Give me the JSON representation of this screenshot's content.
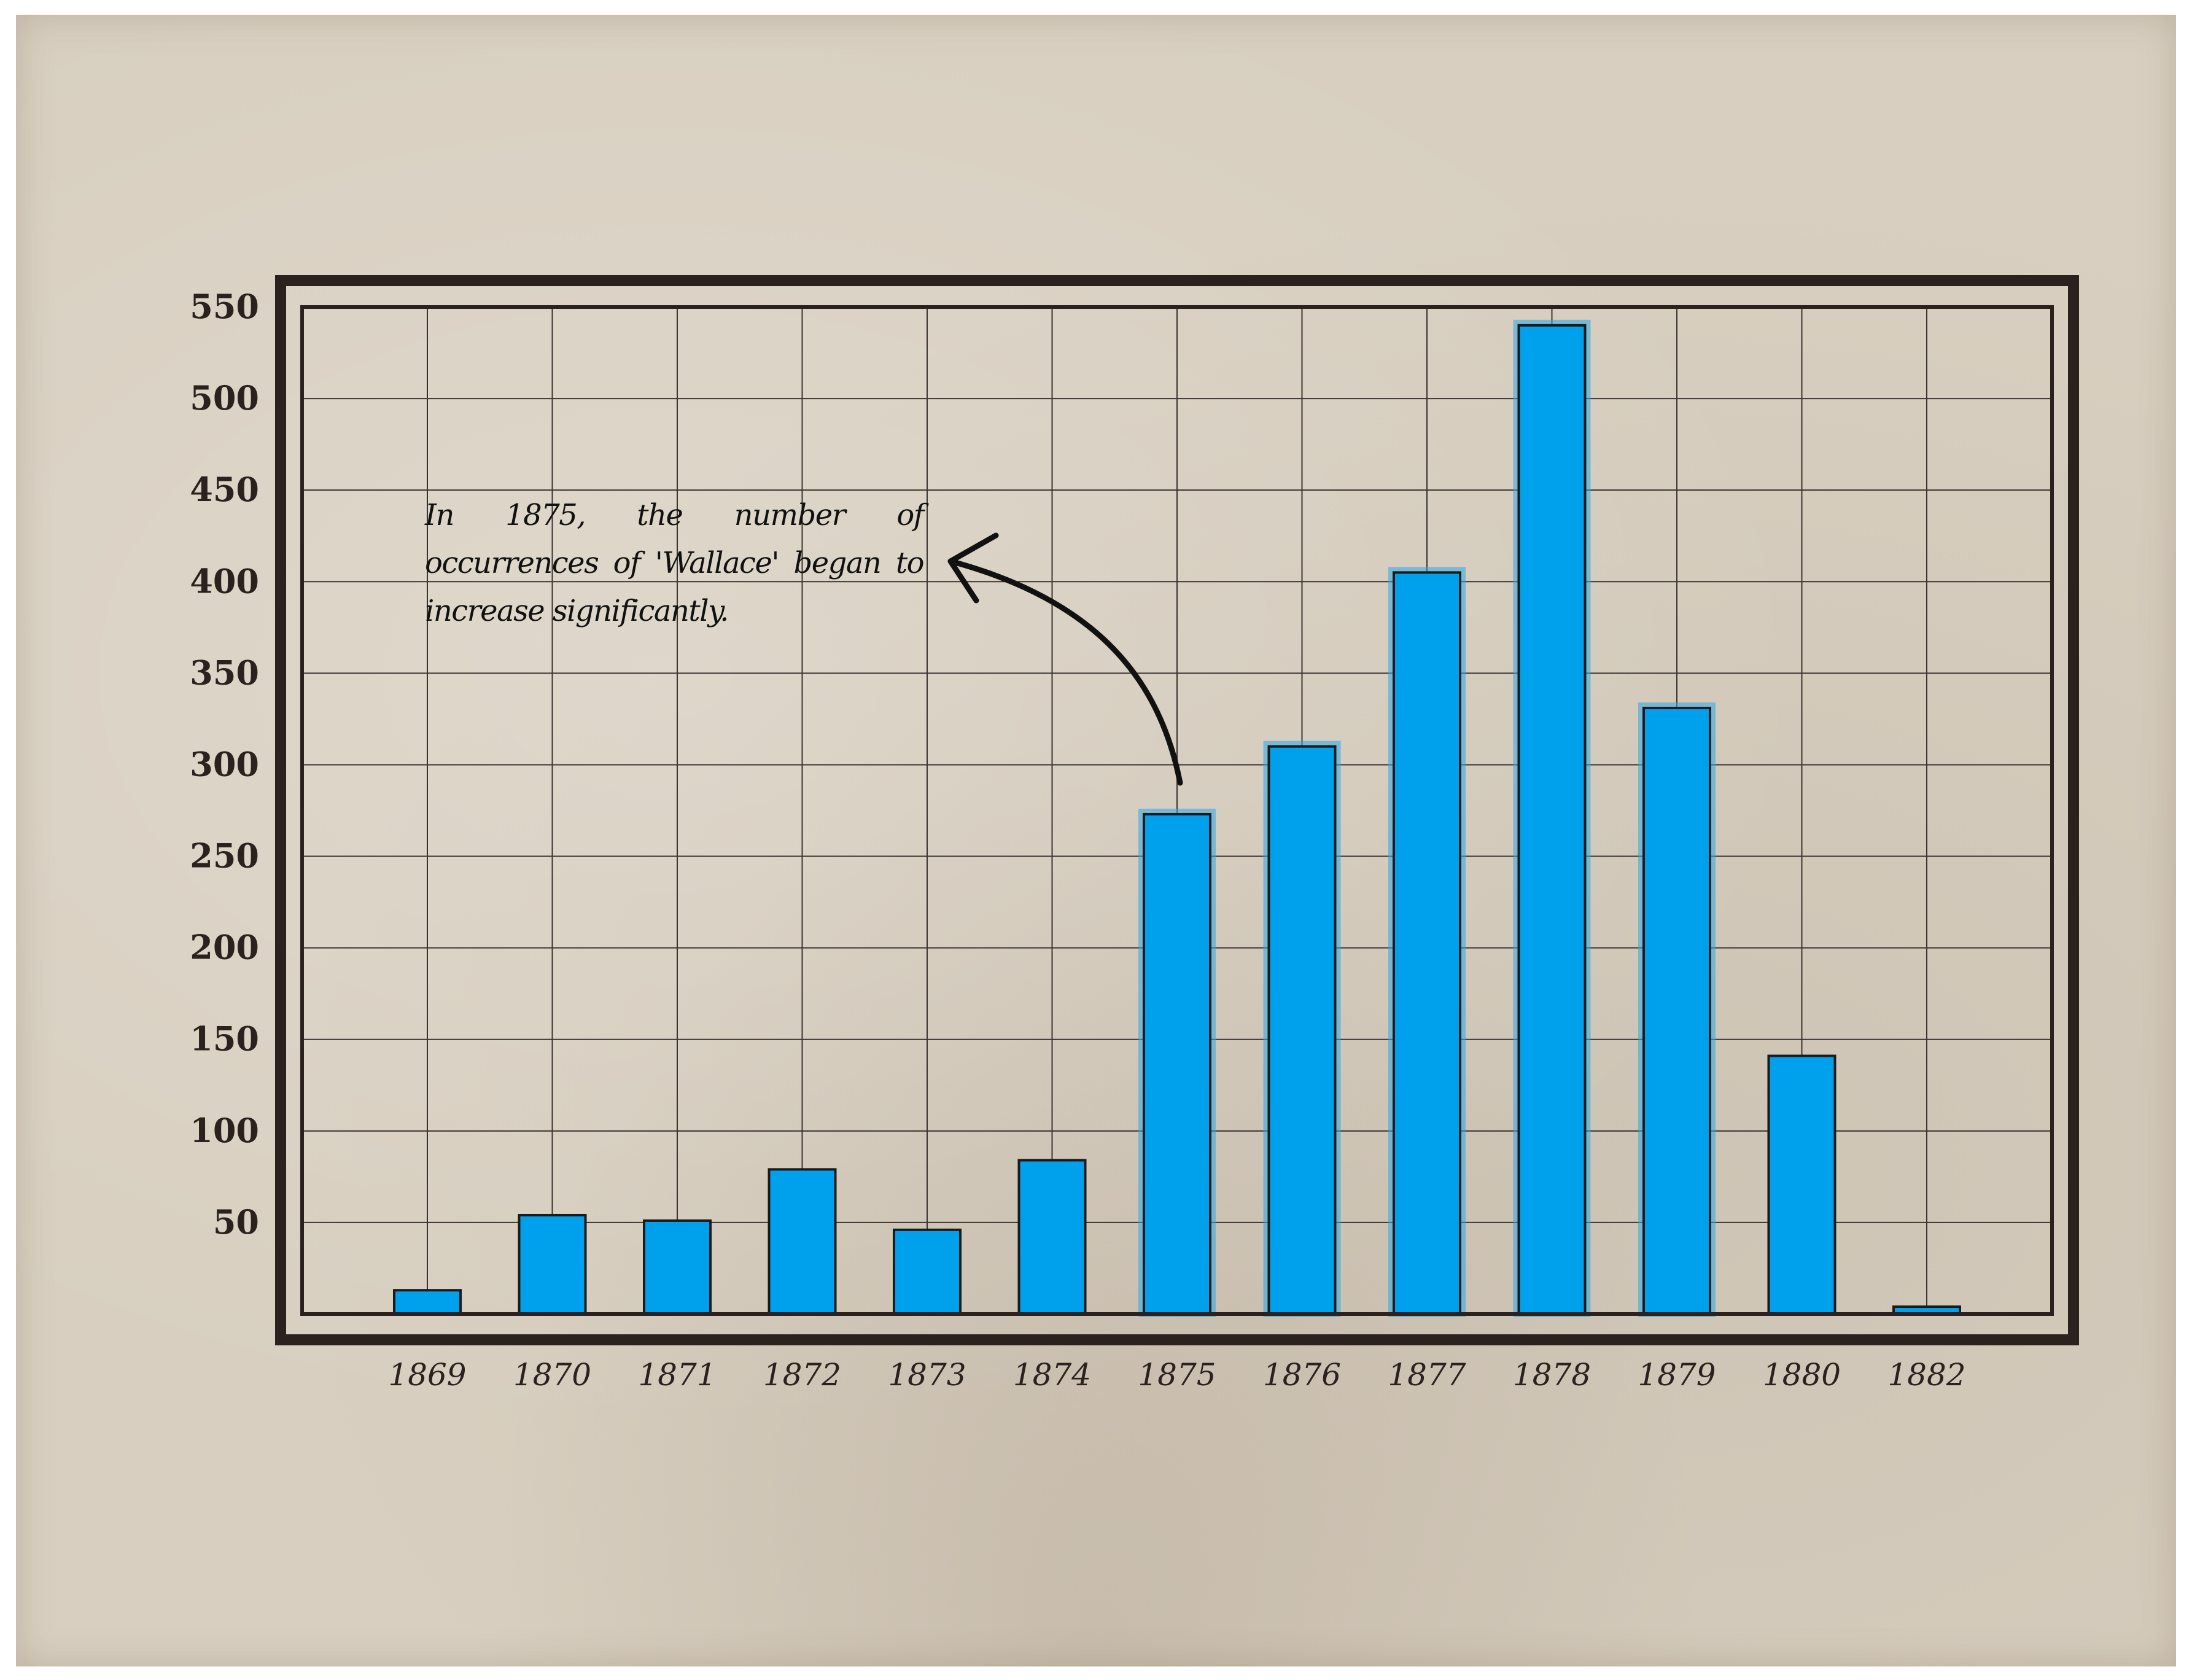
{
  "chart_data": {
    "type": "bar",
    "title": "",
    "xlabel": "",
    "ylabel": "",
    "categories": [
      "1869",
      "1870",
      "1871",
      "1872",
      "1873",
      "1874",
      "1875",
      "1876",
      "1877",
      "1878",
      "1879",
      "1880",
      "1882"
    ],
    "values": [
      13,
      54,
      51,
      79,
      46,
      84,
      273,
      310,
      405,
      540,
      331,
      141,
      4
    ],
    "ylim": [
      0,
      550
    ],
    "yticks": [
      50,
      100,
      150,
      200,
      250,
      300,
      350,
      400,
      450,
      500,
      550
    ],
    "grid": true,
    "bar_color": "#00a1ec",
    "annotation": {
      "text": "In 1875, the number of occurrences of 'Wallace' began to increase significantly.",
      "points_to": "1875"
    }
  },
  "colors": {
    "paper": "#d8cfc0",
    "frame": "#2b2220",
    "bar": "#00a1ec"
  }
}
